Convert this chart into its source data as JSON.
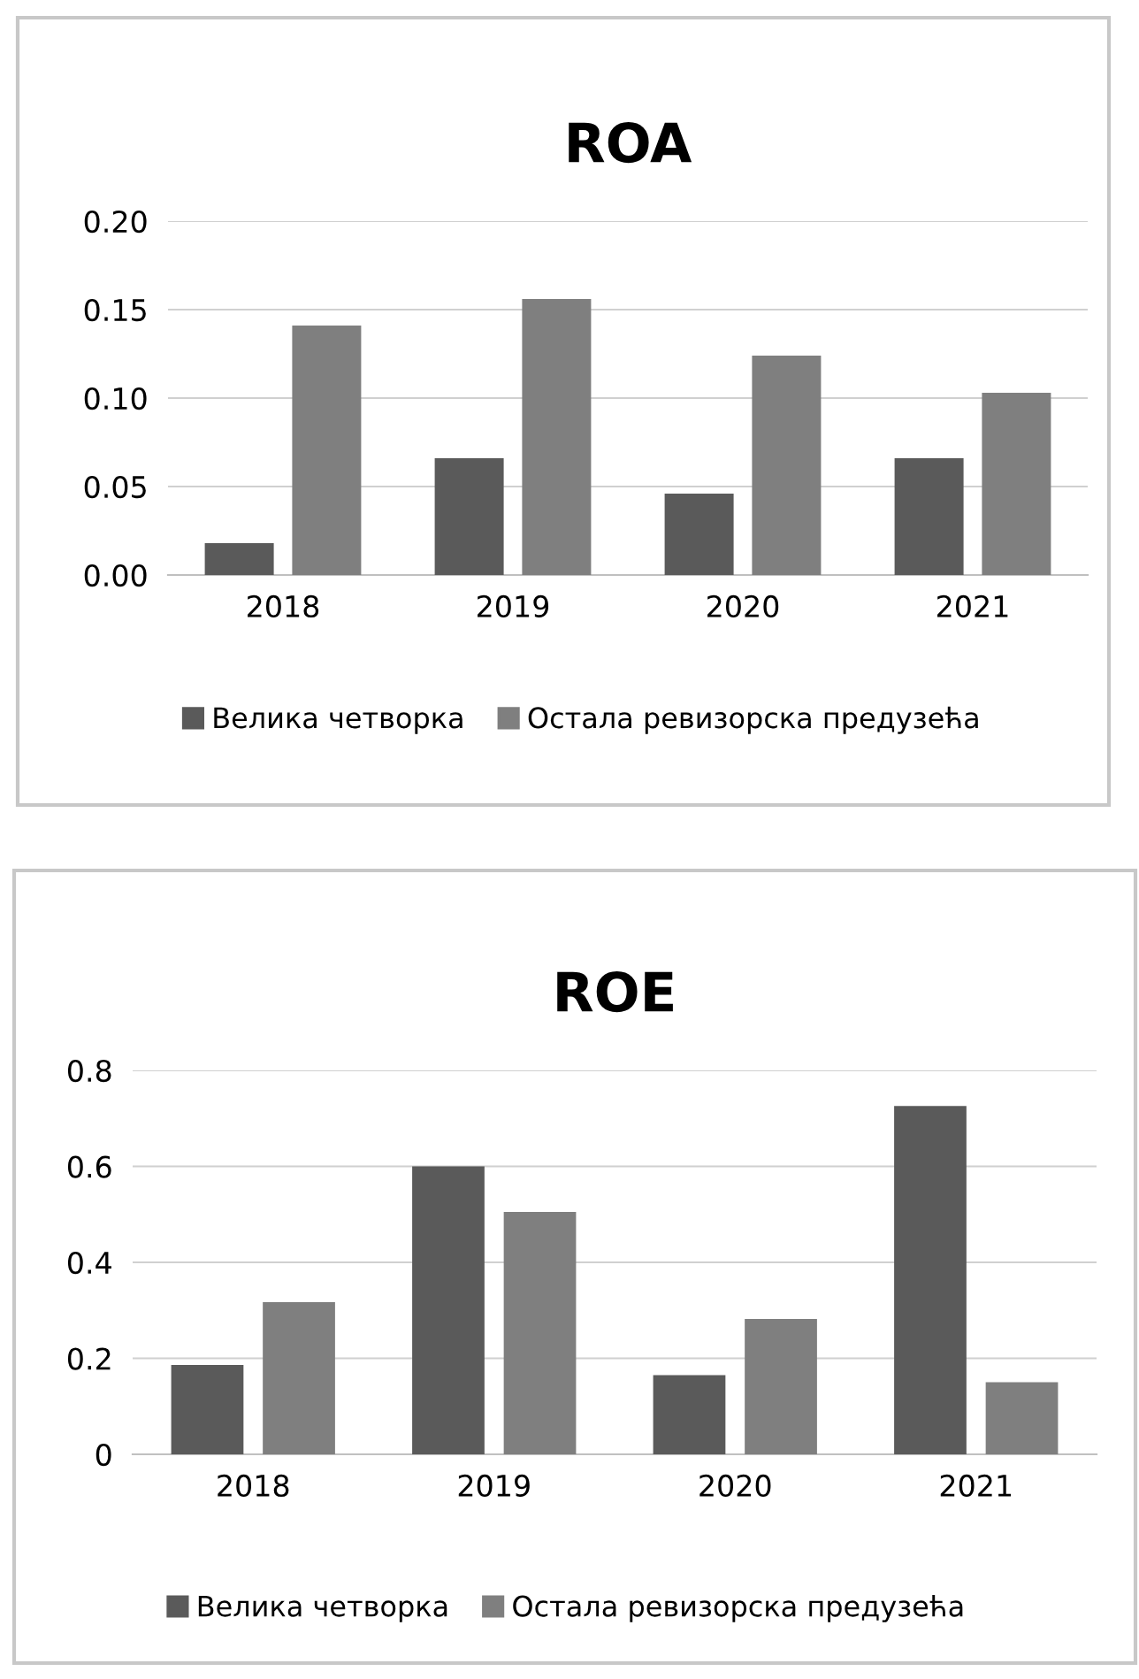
{
  "chart_data": [
    {
      "type": "bar",
      "title": "ROA",
      "categories": [
        "2018",
        "2019",
        "2020",
        "2021"
      ],
      "series": [
        {
          "name": "Велика четворка",
          "color": "#5a5a5a",
          "values": [
            0.018,
            0.066,
            0.046,
            0.066
          ]
        },
        {
          "name": "Остала ревизорска предузећа",
          "color": "#7f7f7f",
          "values": [
            0.141,
            0.156,
            0.124,
            0.103
          ]
        }
      ],
      "ylim": [
        0,
        0.2
      ],
      "yticks": [
        {
          "value": 0,
          "label": "0.00"
        },
        {
          "value": 0.05,
          "label": "0.05"
        },
        {
          "value": 0.1,
          "label": "0.10"
        },
        {
          "value": 0.15,
          "label": "0.15"
        },
        {
          "value": 0.2,
          "label": "0.20"
        }
      ],
      "grid": "y",
      "legend": "bottom"
    },
    {
      "type": "bar",
      "title": "ROE",
      "categories": [
        "2018",
        "2019",
        "2020",
        "2021"
      ],
      "series": [
        {
          "name": "Велика четворка",
          "color": "#5a5a5a",
          "values": [
            0.186,
            0.6,
            0.165,
            0.726
          ]
        },
        {
          "name": "Остала ревизорска предузећа",
          "color": "#7f7f7f",
          "values": [
            0.317,
            0.505,
            0.282,
            0.15
          ]
        }
      ],
      "ylim": [
        0,
        0.8
      ],
      "yticks": [
        0,
        0.2,
        0.4,
        0.6,
        0.8
      ],
      "grid": "y",
      "legend": "bottom"
    }
  ]
}
